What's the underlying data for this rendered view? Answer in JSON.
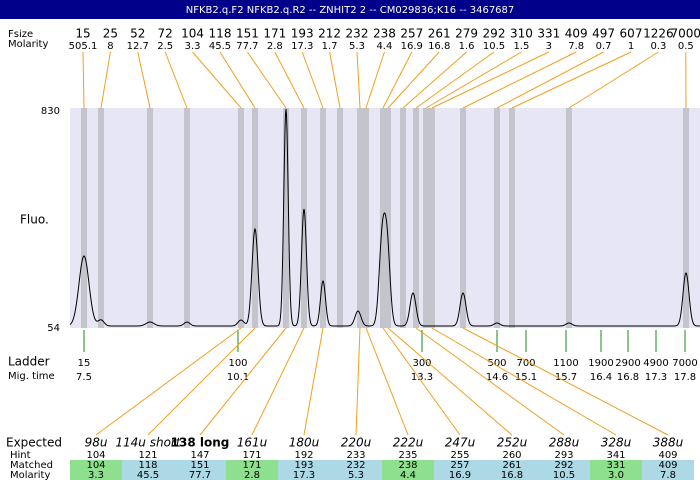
{
  "header": {
    "title": "NFKB2.q.F2  NFKB2.q.R2 -- ZNHIT2 2 -- CM029836;K16 -- 3467687"
  },
  "peaks": {
    "labels": [
      "Fsize",
      "Molarity"
    ],
    "items": [
      {
        "size": 15,
        "molarity": 505.1
      },
      {
        "size": 25,
        "molarity": 8
      },
      {
        "size": 52,
        "molarity": 12.7
      },
      {
        "size": 72,
        "molarity": 2.5
      },
      {
        "size": 104,
        "molarity": 3.3
      },
      {
        "size": 118,
        "molarity": 45.5
      },
      {
        "size": 151,
        "molarity": 77.7
      },
      {
        "size": 171,
        "molarity": 2.8
      },
      {
        "size": 193,
        "molarity": 17.3
      },
      {
        "size": 212,
        "molarity": 1.7
      },
      {
        "size": 232,
        "molarity": 5.3
      },
      {
        "size": 238,
        "molarity": 4.4
      },
      {
        "size": 257,
        "molarity": 16.9
      },
      {
        "size": 261,
        "molarity": 16.8
      },
      {
        "size": 279,
        "molarity": 1.6
      },
      {
        "size": 292,
        "molarity": 10.5
      },
      {
        "size": 310,
        "molarity": 1.5
      },
      {
        "size": 331,
        "molarity": 3
      },
      {
        "size": 409,
        "molarity": 7.8
      },
      {
        "size": 497,
        "molarity": 0.7
      },
      {
        "size": 607,
        "molarity": 1
      },
      {
        "size": 1226,
        "molarity": 0.3
      },
      {
        "size": 7000,
        "molarity": 0.5
      }
    ]
  },
  "axis": {
    "label": "Fluo.",
    "top": 830,
    "bottom": 54
  },
  "ladder": {
    "labels": [
      "Ladder",
      "Mig. time"
    ],
    "items": [
      {
        "size": 15,
        "time": 7.5
      },
      {
        "size": 100,
        "time": 10.1
      },
      {
        "size": 300,
        "time": 13.3
      },
      {
        "size": 500,
        "time": 14.6
      },
      {
        "size": 700,
        "time": 15.1
      },
      {
        "size": 1100,
        "time": 15.7
      },
      {
        "size": 1900,
        "time": 16.4
      },
      {
        "size": 2900,
        "time": 16.8
      },
      {
        "size": 4900,
        "time": 17.3
      },
      {
        "size": 7000,
        "time": 17.8
      }
    ]
  },
  "table": {
    "row_labels": [
      "Expected",
      "Hint",
      "Matched",
      "Molarity"
    ],
    "columns": [
      {
        "expected": "98u",
        "hint": 104,
        "matched": 104,
        "molarity": "3.3",
        "color": "#8ee08e"
      },
      {
        "expected": "114u short",
        "hint": 121,
        "matched": 118,
        "molarity": "45.5",
        "color": "#add8e6"
      },
      {
        "expected": "138 long",
        "hint": 147,
        "matched": 151,
        "molarity": "77.7",
        "color": "#add8e6"
      },
      {
        "expected": "161u",
        "hint": 171,
        "matched": 171,
        "molarity": "2.8",
        "color": "#8ee08e"
      },
      {
        "expected": "180u",
        "hint": 192,
        "matched": 193,
        "molarity": "17.3",
        "color": "#add8e6"
      },
      {
        "expected": "220u",
        "hint": 233,
        "matched": 232,
        "molarity": "5.3",
        "color": "#add8e6"
      },
      {
        "expected": "222u",
        "hint": 235,
        "matched": 238,
        "molarity": "4.4",
        "color": "#8ee08e"
      },
      {
        "expected": "247u",
        "hint": 255,
        "matched": 257,
        "molarity": "16.9",
        "color": "#add8e6"
      },
      {
        "expected": "252u",
        "hint": 260,
        "matched": 261,
        "molarity": "16.8",
        "color": "#add8e6"
      },
      {
        "expected": "288u",
        "hint": 293,
        "matched": 292,
        "molarity": "10.5",
        "color": "#add8e6"
      },
      {
        "expected": "328u",
        "hint": 341,
        "matched": 331,
        "molarity": "3.0",
        "color": "#8ee08e"
      },
      {
        "expected": "388u",
        "hint": 409,
        "matched": 409,
        "molarity": "7.8",
        "color": "#add8e6"
      }
    ]
  }
}
